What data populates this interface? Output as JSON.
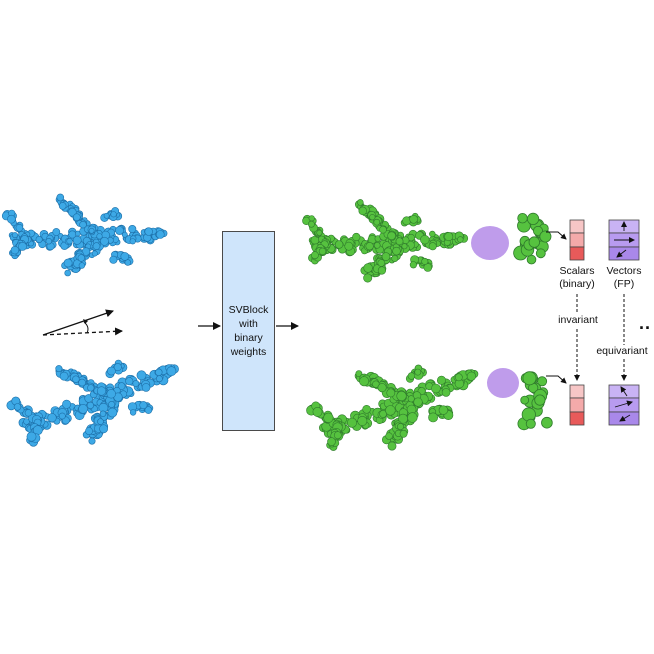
{
  "svblock": {
    "label": "SVBlock\nwith\nbinary\nweights"
  },
  "scalars": {
    "line1": "Scalars",
    "line2": "(binary)"
  },
  "vectors": {
    "line1": "Vectors",
    "line2": "(FP)"
  },
  "invariant_label": "invariant",
  "equivariant_label": "equivariant",
  "continuation": "..",
  "colors": {
    "input_points": "#3da9e6",
    "input_stroke": "#1d6fa8",
    "feature_points": "#56c23f",
    "feature_stroke": "#2f7a2c",
    "receptive_field": "#b48be8",
    "scalar_light": "#f7c6c6",
    "scalar_dark": "#e85a5a",
    "vector_fill": "#b89bf0",
    "block_fill": "#cfe5fb"
  },
  "icons": [
    "rotation-arrows-icon",
    "vector-arrow-icon"
  ]
}
